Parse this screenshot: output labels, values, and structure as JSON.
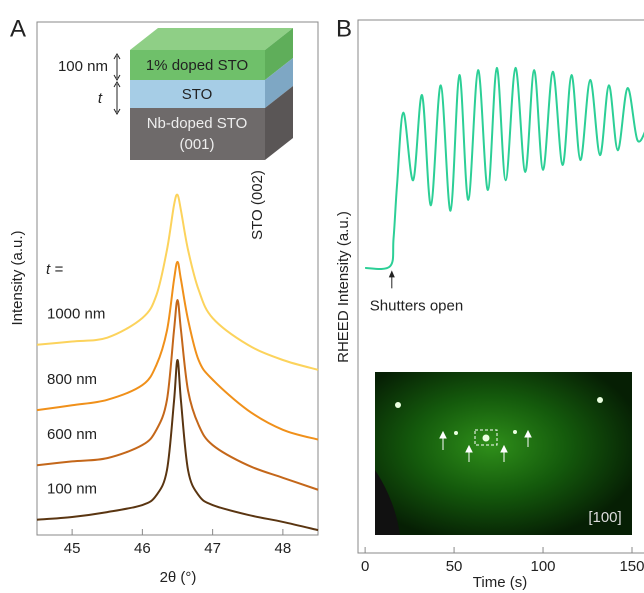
{
  "chart_data": [
    {
      "type": "line",
      "panel_label": "A",
      "xlabel": "2θ (°)",
      "ylabel": "Intensity (a.u.)",
      "annotation": "STO (002)",
      "legend_title": "t =",
      "inset": {
        "layers": [
          "1% doped STO",
          "STO",
          "Nb-doped STO",
          "(001)"
        ],
        "thickness_labels": [
          "100 nm",
          "t"
        ]
      },
      "x": [
        44.5,
        45,
        45.5,
        46,
        46.2,
        46.35,
        46.45,
        46.5,
        46.55,
        46.65,
        46.8,
        47,
        47.5,
        48,
        48.5
      ],
      "series": [
        {
          "name": "100 nm",
          "color": "#5a3511",
          "values": [
            8.3,
            8.8,
            9.7,
            11,
            12.8,
            17.4,
            30,
            37.6,
            30,
            17.4,
            12.8,
            11,
            9.2,
            7.9,
            6.4
          ]
        },
        {
          "name": "600 nm",
          "color": "#c4671a",
          "values": [
            18.3,
            19,
            19.6,
            22,
            24.8,
            30.3,
            43,
            48.6,
            43,
            32,
            25.7,
            22,
            18.3,
            16,
            13.8
          ]
        },
        {
          "name": "800 nm",
          "color": "#f0901a",
          "values": [
            28.4,
            29.3,
            30.3,
            33,
            36.7,
            43,
            52.3,
            55.6,
            52.3,
            45,
            37.6,
            34,
            28.4,
            24.8,
            23
          ]
        },
        {
          "name": "1000 nm",
          "color": "#fcd35c",
          "values": [
            40.4,
            41,
            41.7,
            45.3,
            49.5,
            57.8,
            66,
            67.9,
            65,
            57.8,
            50.5,
            45.3,
            40.4,
            37.6,
            35.8
          ]
        }
      ],
      "xlim": [
        44.5,
        48.5
      ],
      "xticks": [
        45,
        46,
        47,
        48
      ],
      "ylim": [
        5.5,
        99.6
      ]
    },
    {
      "type": "line",
      "panel_label": "B",
      "xlabel": "Time (s)",
      "ylabel": "RHEED Intensity (a.u.)",
      "annotation": {
        "text": "Shutters open",
        "x": 15
      },
      "inset_label": "[100]",
      "x": [
        0,
        14,
        16,
        18,
        21.5,
        27,
        32,
        37,
        42.5,
        48,
        53,
        58,
        63.5,
        69,
        74,
        79,
        84.5,
        90,
        95,
        100,
        105.5,
        111,
        116,
        121,
        126.5,
        132,
        137,
        142,
        147.5,
        153,
        158
      ],
      "values": [
        54.5,
        54.8,
        60,
        70,
        83,
        70.6,
        86.2,
        66,
        88,
        65,
        89.9,
        67,
        90.8,
        68.8,
        91.2,
        70.6,
        91.2,
        72.1,
        90.8,
        72.5,
        90.5,
        73.4,
        89.9,
        74.3,
        89,
        75.2,
        88,
        76.1,
        87.5,
        78,
        80
      ],
      "color": "#2ccf96",
      "xlim": [
        -4,
        159
      ],
      "xticks": [
        0,
        50,
        100,
        150
      ],
      "ylim": [
        2.2,
        100
      ]
    }
  ]
}
